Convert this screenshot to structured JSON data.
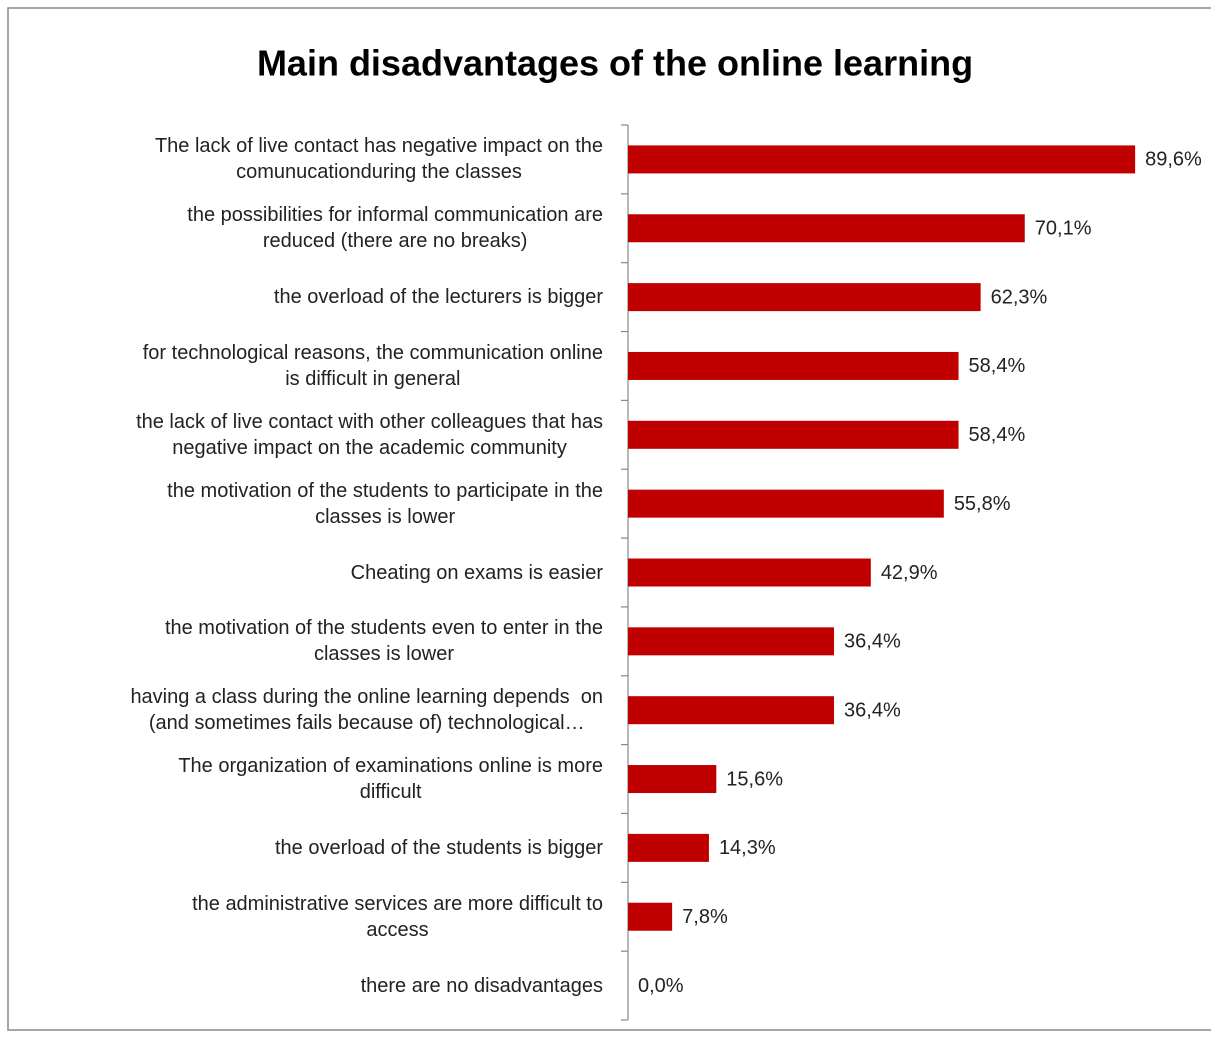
{
  "chart_data": {
    "type": "bar",
    "orientation": "horizontal",
    "title": "Main disadvantages of the online learning",
    "categories": [
      "The lack of live contact has negative impact on the\ncomunucationduring the classes",
      "the possibilities for informal communication are\nreduced (there are no breaks)",
      "the overload of the lecturers is bigger",
      "for technological reasons, the communication online\nis difficult in general",
      "the lack of live contact with other colleagues that has\nnegative impact on the academic community",
      "the motivation of the students to participate in the\nclasses is lower",
      "Cheating on exams is easier",
      "the motivation of the students even to enter in the\nclasses is lower",
      "having a class during the online learning depends  on\n(and sometimes fails because of) technological…",
      "The organization of examinations online is more\ndifficult",
      "the overload of the students is bigger",
      "the administrative services are more difficult to\naccess",
      "there are no disadvantages"
    ],
    "values": [
      89.6,
      70.1,
      62.3,
      58.4,
      58.4,
      55.8,
      42.9,
      36.4,
      36.4,
      15.6,
      14.3,
      7.8,
      0.0
    ],
    "value_labels": [
      "89,6%",
      "70,1%",
      "62,3%",
      "58,4%",
      "58,4%",
      "55,8%",
      "42,9%",
      "36,4%",
      "36,4%",
      "15,6%",
      "14,3%",
      "7,8%",
      "0,0%"
    ],
    "color": "#c00000",
    "xlim": [
      0,
      100
    ]
  }
}
